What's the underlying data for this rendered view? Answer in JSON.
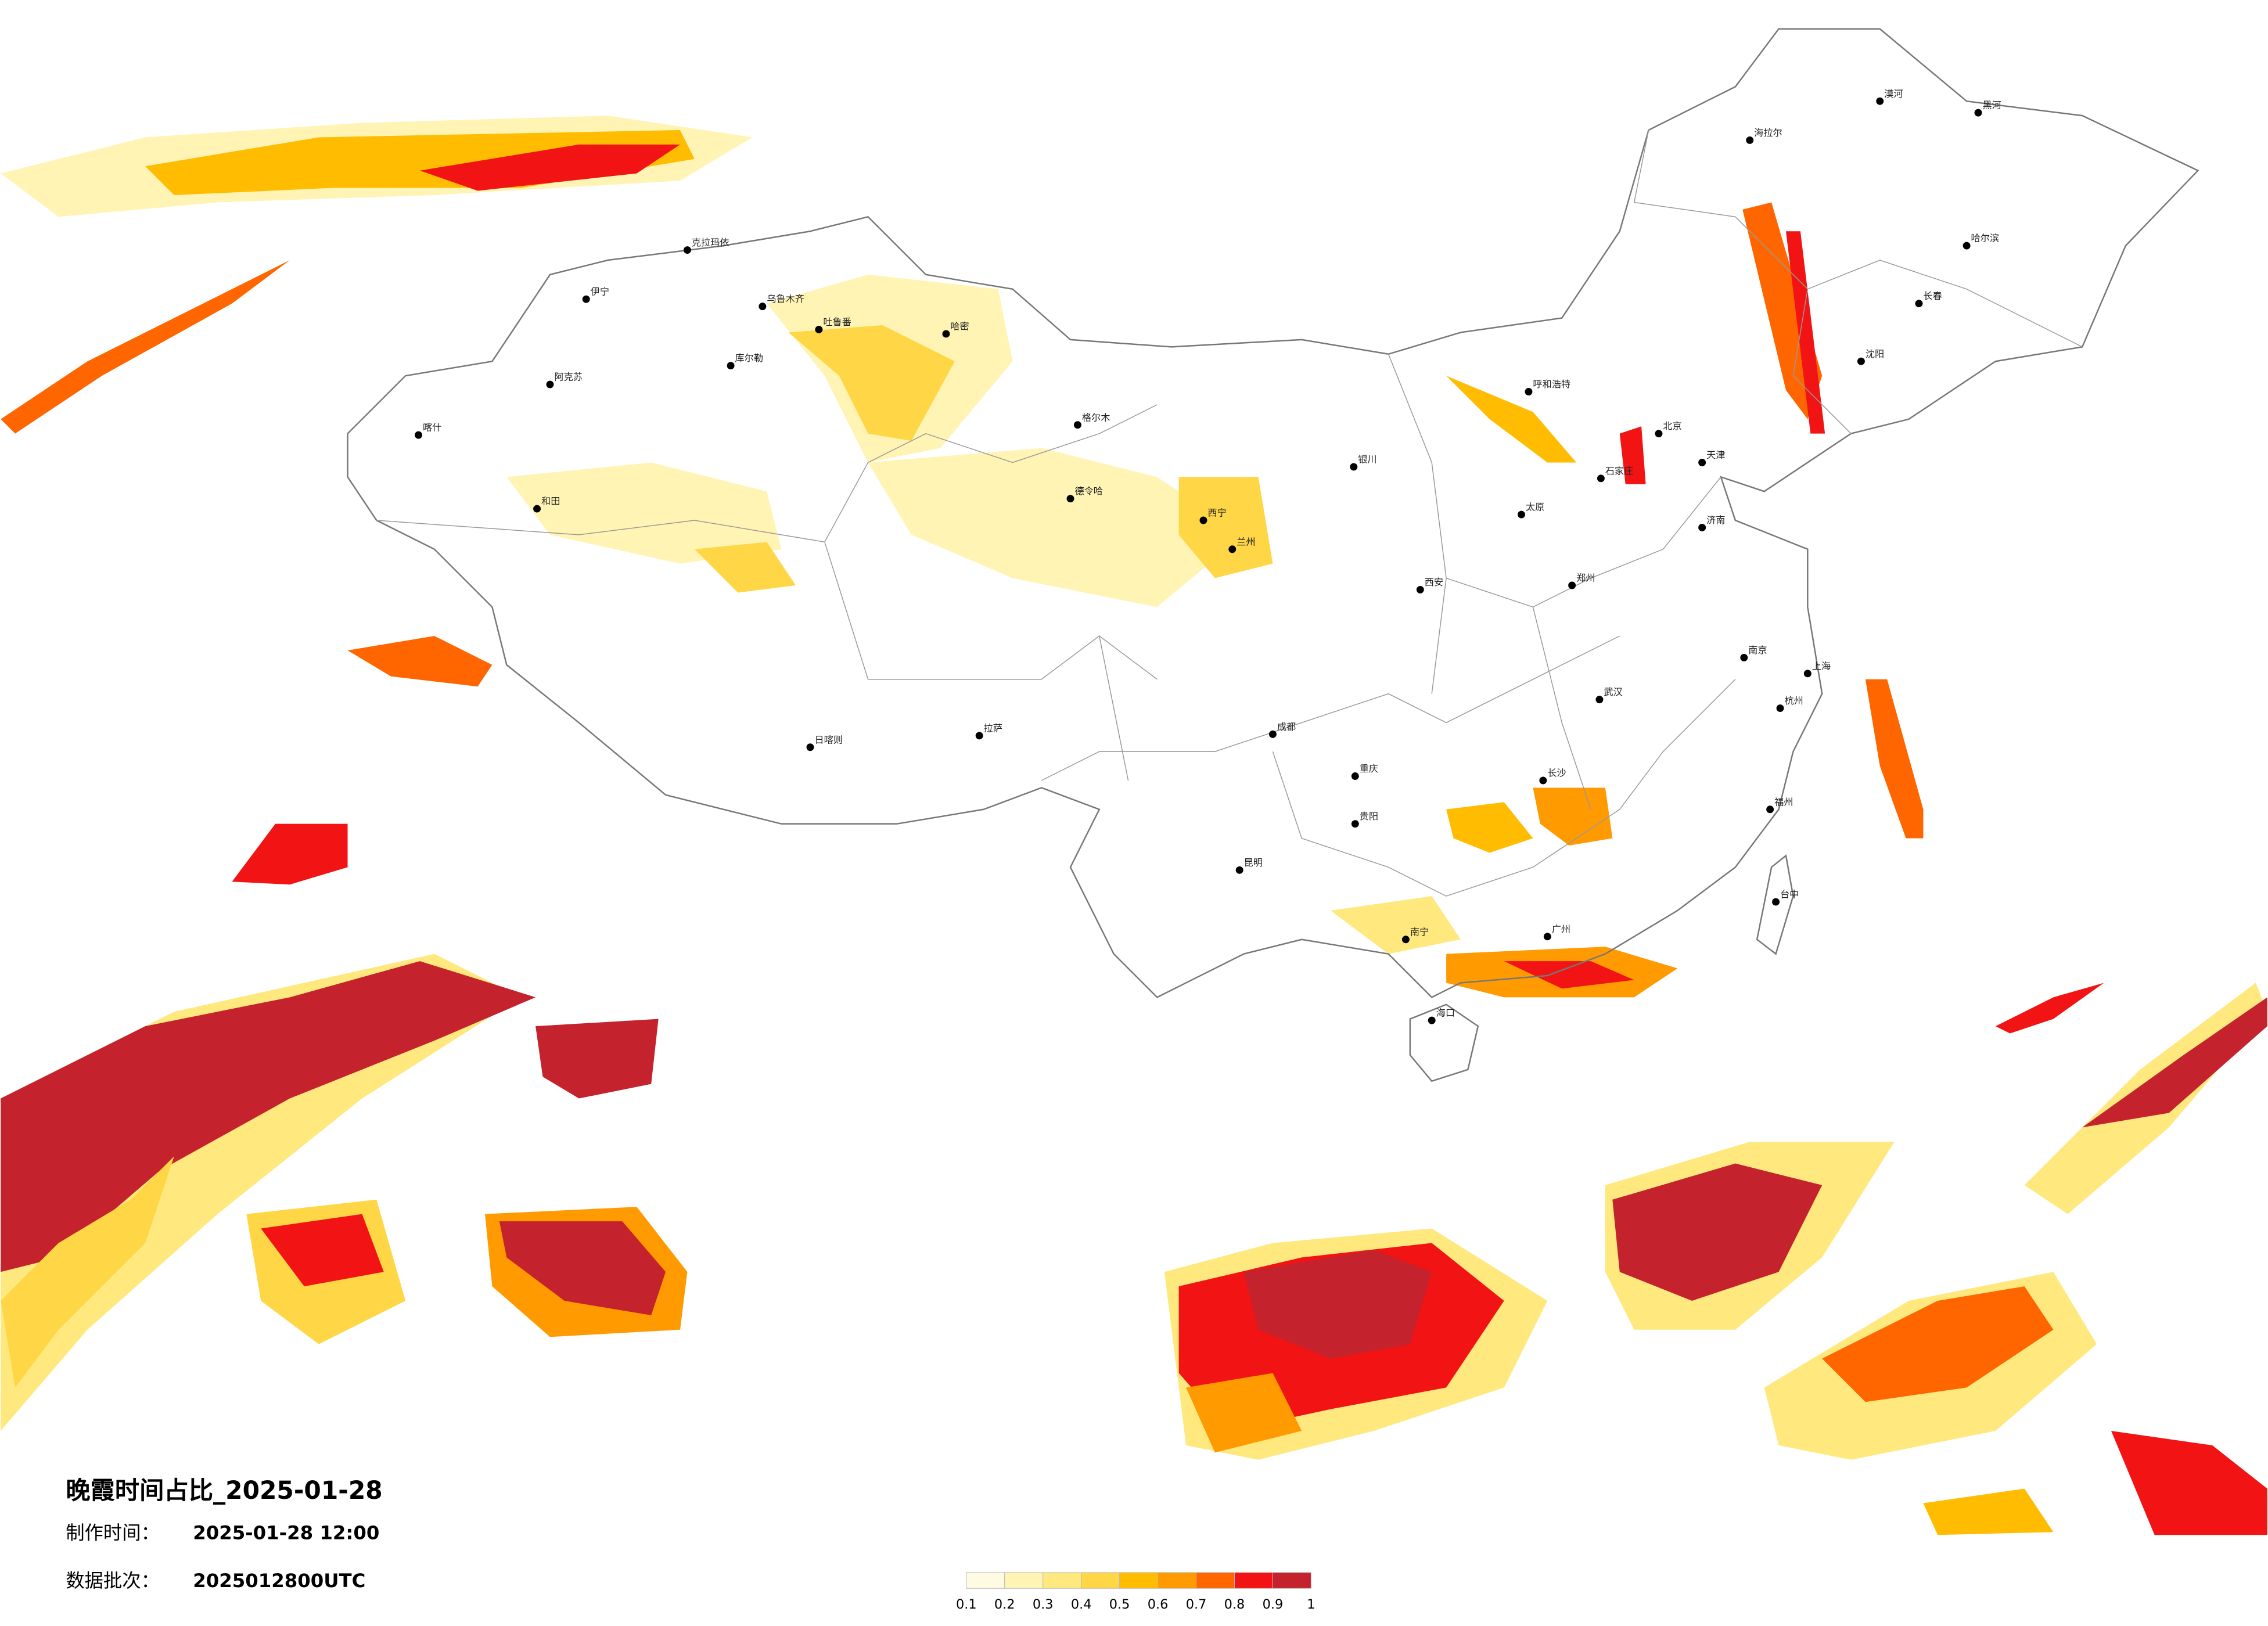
{
  "title": "晚霞时间占比_2025-01-28",
  "made_time": {
    "label": "制作时间：",
    "value": "2025-01-28 12:00"
  },
  "batch": {
    "label": "数据批次：",
    "value": "2025012800UTC"
  },
  "legend": {
    "ticks": [
      0.1,
      0.2,
      0.3,
      0.4,
      0.5,
      0.6,
      0.7,
      0.8,
      0.9,
      1
    ],
    "colors": [
      "#fffbe2",
      "#fff4b4",
      "#ffe87e",
      "#ffd645",
      "#ffbc00",
      "#ff9a00",
      "#ff6600",
      "#f21414",
      "#c4222c"
    ]
  },
  "cities": [
    "克拉玛依",
    "伊宁",
    "阿克苏",
    "喀什",
    "和田",
    "吐鲁番",
    "哈密",
    "乌鲁木齐",
    "库尔勒",
    "格尔木",
    "德令哈",
    "西宁",
    "兰州",
    "拉萨",
    "日喀则",
    "成都",
    "重庆",
    "昆明",
    "贵阳",
    "南宁",
    "广州",
    "海口",
    "长沙",
    "武汉",
    "郑州",
    "西安",
    "北京",
    "天津",
    "石家庄",
    "太原",
    "呼和浩特",
    "银川",
    "济南",
    "南京",
    "上海",
    "杭州",
    "福州",
    "台中",
    "沈阳",
    "长春",
    "哈尔滨",
    "海拉尔",
    "黑河",
    "漠河"
  ]
}
